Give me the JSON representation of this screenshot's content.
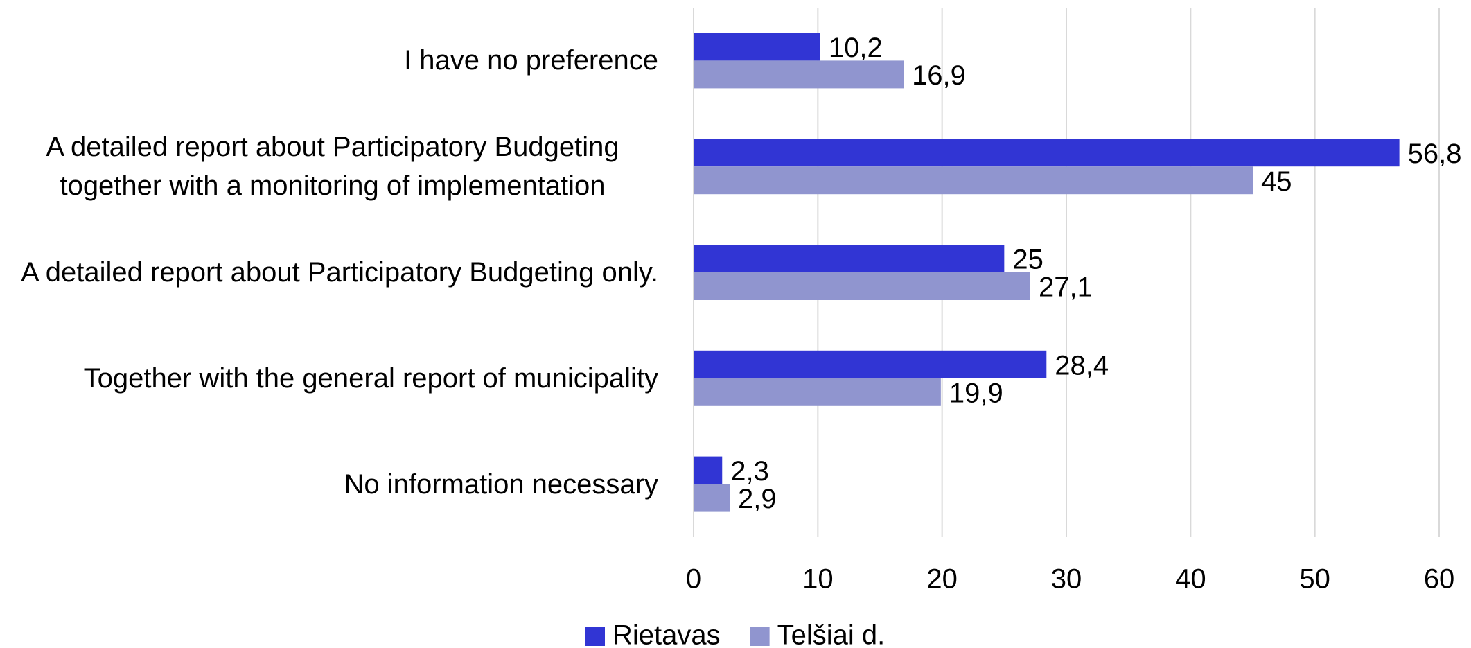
{
  "chart_data": {
    "type": "bar",
    "orientation": "horizontal",
    "categories": [
      "I have no preference",
      "A detailed report about Participatory Budgeting together with a monitoring of implementation",
      "A detailed report about Participatory Budgeting only.",
      "Together with the general report of municipality",
      "No information necessary"
    ],
    "series": [
      {
        "name": "Rietavas",
        "color": "#3135d4",
        "values": [
          10.2,
          56.8,
          25,
          28.4,
          2.3
        ],
        "value_labels": [
          "10,2",
          "56,8",
          "25",
          "28,4",
          "2,3"
        ]
      },
      {
        "name": "Telšiai d.",
        "color": "#9095cf",
        "values": [
          16.9,
          45,
          27.1,
          19.9,
          2.9
        ],
        "value_labels": [
          "16,9",
          "45",
          "27,1",
          "19,9",
          "2,9"
        ]
      }
    ],
    "xlim": [
      0,
      60
    ],
    "xticks": [
      0,
      10,
      20,
      30,
      40,
      50,
      60
    ],
    "grid": true,
    "legend": "bottom"
  }
}
